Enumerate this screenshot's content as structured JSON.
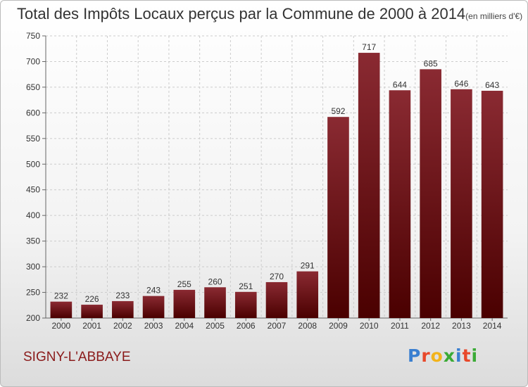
{
  "header": {
    "title": "Total des Impôts Locaux perçus par la Commune de 2000 à 2014",
    "unit": "(en milliers d'€)"
  },
  "footer": {
    "commune": "SIGNY-L'ABBAYE",
    "logo_letters": [
      "P",
      "r",
      "o",
      "x",
      "i",
      "t",
      "i"
    ],
    "logo_colors": [
      "#3a7fd0",
      "#e8482a",
      "#f2b31b",
      "#3aaa35",
      "#3a7fd0",
      "#e8482a",
      "#3aaa35"
    ]
  },
  "chart_data": {
    "type": "bar",
    "title": "Total des Impôts Locaux perçus par la Commune de 2000 à 2014",
    "unit": "(en milliers d'€)",
    "categories": [
      "2000",
      "2001",
      "2002",
      "2003",
      "2004",
      "2005",
      "2006",
      "2007",
      "2008",
      "2009",
      "2010",
      "2011",
      "2012",
      "2013",
      "2014"
    ],
    "values": [
      232,
      226,
      233,
      243,
      255,
      260,
      251,
      270,
      291,
      592,
      717,
      644,
      685,
      646,
      643
    ],
    "ylim": [
      200,
      750
    ],
    "yticks": [
      200,
      250,
      300,
      350,
      400,
      450,
      500,
      550,
      600,
      650,
      700,
      750
    ],
    "grid": true,
    "bar_color_top": "#8a2a32",
    "bar_color_bottom": "#4a0000"
  }
}
